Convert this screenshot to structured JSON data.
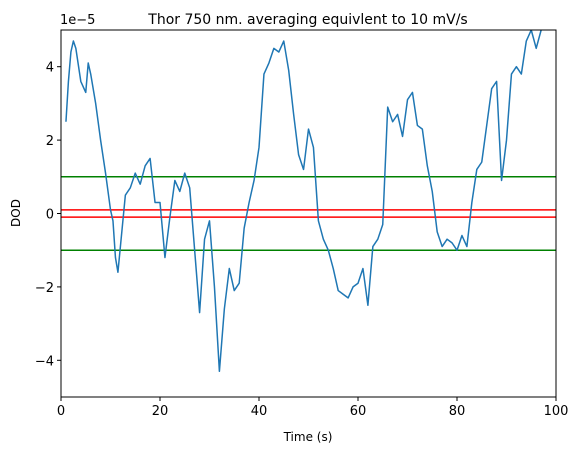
{
  "chart_data": {
    "type": "line",
    "title": "Thor 750 nm. averaging equivlent to 10 mV/s",
    "xlabel": "Time (s)",
    "ylabel": "DOD",
    "offset_text": "1e−5",
    "xlim": [
      0,
      100
    ],
    "ylim": [
      -5,
      5
    ],
    "y_multiplier": 1e-05,
    "xticks": [
      0,
      20,
      40,
      60,
      80,
      100
    ],
    "yticks": [
      -4,
      -2,
      0,
      2,
      4
    ],
    "xtick_labels": [
      "0",
      "20",
      "40",
      "60",
      "80",
      "100"
    ],
    "ytick_labels": [
      "−4",
      "−2",
      "0",
      "2",
      "4"
    ],
    "grid": false,
    "series": [
      {
        "color": "#1f77b4",
        "x": [
          1,
          1.5,
          2,
          2.5,
          3,
          4,
          5,
          5.5,
          6,
          7,
          8,
          9,
          10,
          10.5,
          11,
          11.5,
          12,
          13,
          14,
          15,
          16,
          17,
          18,
          19,
          20,
          21,
          22,
          23,
          24,
          25,
          26,
          27,
          28,
          29,
          30,
          31,
          32,
          33,
          34,
          35,
          36,
          37,
          38,
          39,
          40,
          41,
          42,
          43,
          44,
          45,
          46,
          47,
          48,
          49,
          50,
          51,
          52,
          53,
          54,
          55,
          56,
          57,
          58,
          59,
          60,
          61,
          62,
          63,
          64,
          65,
          66,
          67,
          68,
          69,
          70,
          71,
          72,
          73,
          74,
          75,
          76,
          77,
          78,
          79,
          80,
          81,
          82,
          83,
          84,
          85,
          86,
          87,
          88,
          89,
          90,
          91,
          92,
          93,
          94,
          95,
          96,
          97
        ],
        "y": [
          2.5,
          3.6,
          4.4,
          4.7,
          4.5,
          3.6,
          3.3,
          4.1,
          3.8,
          3.0,
          2.0,
          1.1,
          0.1,
          -0.2,
          -1.2,
          -1.6,
          -0.9,
          0.5,
          0.7,
          1.1,
          0.8,
          1.3,
          1.5,
          0.3,
          0.3,
          -1.2,
          -0.1,
          0.9,
          0.6,
          1.1,
          0.7,
          -1.0,
          -2.7,
          -0.7,
          -0.2,
          -2.0,
          -4.3,
          -2.6,
          -1.5,
          -2.1,
          -1.9,
          -0.4,
          0.3,
          0.9,
          1.8,
          3.8,
          4.1,
          4.5,
          4.4,
          4.7,
          3.9,
          2.7,
          1.6,
          1.2,
          2.3,
          1.8,
          -0.2,
          -0.7,
          -1.0,
          -1.5,
          -2.1,
          -2.2,
          -2.3,
          -2.0,
          -1.9,
          -1.5,
          -2.5,
          -0.9,
          -0.7,
          -0.3,
          2.9,
          2.5,
          2.7,
          2.1,
          3.1,
          3.3,
          2.4,
          2.3,
          1.3,
          0.6,
          -0.5,
          -0.9,
          -0.7,
          -0.8,
          -1.0,
          -0.6,
          -0.9,
          0.3,
          1.2,
          1.4,
          2.4,
          3.4,
          3.6,
          0.9,
          2.0,
          3.8,
          4.0,
          3.8,
          4.7,
          5.0,
          4.5,
          5.0
        ]
      }
    ],
    "hlines": [
      {
        "y": 1.0,
        "color": "#008000"
      },
      {
        "y": 0.1,
        "color": "#ff0000"
      },
      {
        "y": -0.1,
        "color": "#ff0000"
      },
      {
        "y": -1.0,
        "color": "#008000"
      }
    ]
  }
}
